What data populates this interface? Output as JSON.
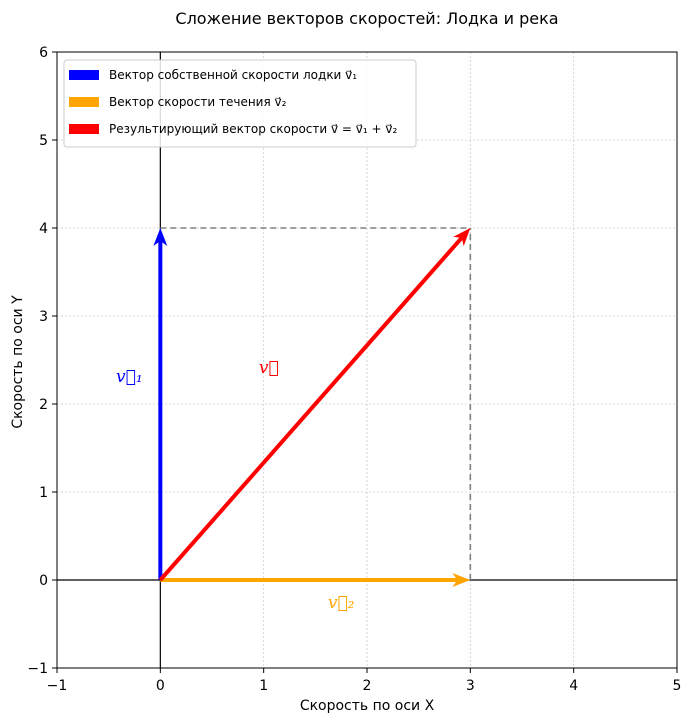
{
  "chart_data": {
    "type": "vector",
    "title": "Сложение векторов скоростей: Лодка и река",
    "xlabel": "Скорость по оси X",
    "ylabel": "Скорость по оси Y",
    "xlim": [
      -1,
      5
    ],
    "ylim": [
      -1,
      6
    ],
    "xticks": [
      "−1",
      "0",
      "1",
      "2",
      "3",
      "4",
      "5"
    ],
    "yticks": [
      "−1",
      "0",
      "1",
      "2",
      "3",
      "4",
      "5",
      "6"
    ],
    "grid": true,
    "legend_position": "upper-left",
    "vectors": [
      {
        "key": "v1",
        "start": [
          0,
          0
        ],
        "end": [
          0,
          4
        ],
        "color": "#0000ff",
        "legend": "Вектор собственной скорости лодки v⃗₁",
        "label": "v⃗₁",
        "label_at": [
          -0.3,
          2.25
        ]
      },
      {
        "key": "v2",
        "start": [
          0,
          0
        ],
        "end": [
          3,
          0
        ],
        "color": "#ffa500",
        "legend": "Вектор скорости течения v⃗₂",
        "label": "v⃗₂",
        "label_at": [
          1.75,
          -0.32
        ]
      },
      {
        "key": "v",
        "start": [
          0,
          0
        ],
        "end": [
          3,
          4
        ],
        "color": "#ff0000",
        "legend": "Результирующий вектор скорости v⃗ = v⃗₁ + v⃗₂",
        "label": "v⃗",
        "label_at": [
          1.05,
          2.35
        ]
      }
    ],
    "guide_lines": [
      {
        "from": [
          0,
          4
        ],
        "to": [
          3,
          4
        ]
      },
      {
        "from": [
          3,
          0
        ],
        "to": [
          3,
          4
        ]
      }
    ]
  }
}
